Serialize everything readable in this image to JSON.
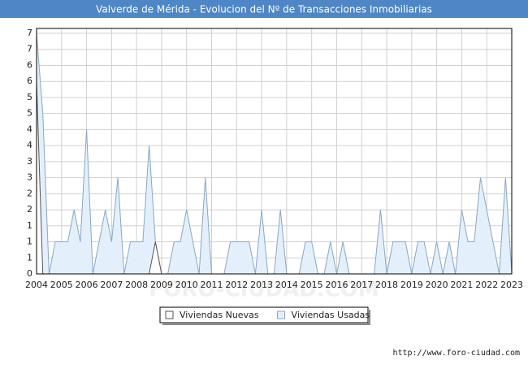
{
  "chart_data": {
    "type": "area",
    "title": "Valverde de Mérida - Evolucion del Nº de Transacciones Inmobiliarias",
    "watermark": "FORO-CIUDAD.COM",
    "source": "http://www.foro-ciudad.com",
    "x": [
      2004,
      2004.25,
      2004.5,
      2004.75,
      2005,
      2005.25,
      2005.5,
      2005.75,
      2006,
      2006.25,
      2006.5,
      2006.75,
      2007,
      2007.25,
      2007.5,
      2007.75,
      2008,
      2008.25,
      2008.5,
      2008.75,
      2009,
      2009.25,
      2009.5,
      2009.75,
      2010,
      2010.25,
      2010.5,
      2010.75,
      2011,
      2011.25,
      2011.5,
      2011.75,
      2012,
      2012.25,
      2012.5,
      2012.75,
      2013,
      2013.25,
      2013.5,
      2013.75,
      2014,
      2014.25,
      2014.5,
      2014.75,
      2015,
      2015.25,
      2015.5,
      2015.75,
      2016,
      2016.25,
      2016.5,
      2016.75,
      2017,
      2017.25,
      2017.5,
      2017.75,
      2018,
      2018.25,
      2018.5,
      2018.75,
      2019,
      2019.25,
      2019.5,
      2019.75,
      2020,
      2020.25,
      2020.5,
      2020.75,
      2021,
      2021.25,
      2021.5,
      2021.75,
      2022,
      2022.25,
      2022.5,
      2022.75,
      2023
    ],
    "series": [
      {
        "name": "Viviendas Usadas",
        "color": "#e3f0fc",
        "stroke": "#8aa6c4",
        "values": [
          7.5,
          5,
          0,
          1,
          1,
          1,
          2,
          1,
          4.5,
          0,
          1,
          2,
          1,
          3,
          0,
          1,
          1,
          1,
          4,
          1,
          0,
          0,
          1,
          1,
          2,
          1,
          0,
          3,
          0,
          0,
          0,
          1,
          1,
          1,
          1,
          0,
          2,
          0,
          0,
          2,
          0,
          0,
          0,
          1,
          1,
          0,
          0,
          1,
          0,
          1,
          0,
          0,
          0,
          0,
          0,
          2,
          0,
          1,
          1,
          1,
          0,
          1,
          1,
          0,
          1,
          0,
          1,
          0,
          2,
          1,
          1,
          3,
          2,
          1,
          0,
          3,
          0
        ]
      },
      {
        "name": "Viviendas Nuevas",
        "color": "#ffffff",
        "stroke": "#555555",
        "values": [
          6,
          0,
          0,
          0,
          0,
          0,
          0,
          0,
          0,
          0,
          0,
          0,
          0,
          0,
          0,
          0,
          0,
          0,
          0,
          1,
          0,
          0,
          0,
          0,
          0,
          0,
          0,
          0,
          0,
          0,
          0,
          0,
          0,
          0,
          0,
          0,
          0,
          0,
          0,
          0,
          0,
          0,
          0,
          0,
          0,
          0,
          0,
          0,
          0,
          0,
          0,
          0,
          0,
          0,
          0,
          0,
          0,
          0,
          0,
          0,
          0,
          0,
          0,
          0,
          0,
          0,
          0,
          0,
          0,
          0,
          0,
          0,
          0,
          0,
          0,
          0,
          0
        ]
      }
    ],
    "legend_order": [
      1,
      0
    ],
    "xlim": [
      2004,
      2023
    ],
    "xticks": [
      2004,
      2005,
      2006,
      2007,
      2008,
      2009,
      2010,
      2011,
      2012,
      2013,
      2014,
      2015,
      2016,
      2017,
      2018,
      2019,
      2020,
      2021,
      2022,
      2023
    ],
    "ylim": [
      0,
      7.5
    ],
    "yticks": [
      0,
      {
        "value": 0.5,
        "label": "1"
      },
      1,
      {
        "value": 1.5,
        "label": "1"
      },
      2,
      {
        "value": 2.5,
        "label": "2"
      },
      3,
      {
        "value": 3.5,
        "label": "3"
      },
      4,
      {
        "value": 4.5,
        "label": "4"
      },
      5,
      {
        "value": 5.5,
        "label": "5"
      },
      6,
      {
        "value": 6.5,
        "label": "6"
      },
      7,
      {
        "value": 7.5,
        "label": "7"
      }
    ],
    "grid": true
  }
}
